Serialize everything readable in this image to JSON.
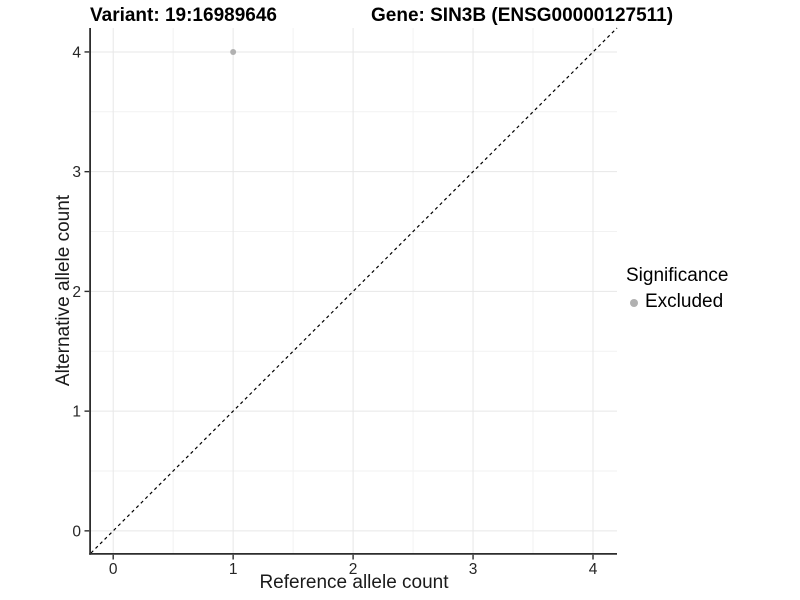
{
  "title": {
    "variant_part": "Variant: 19:16989646",
    "gene_part": "Gene: SIN3B (ENSG00000127511)"
  },
  "x_axis": {
    "label": "Reference allele count",
    "ticks": [
      "0",
      "1",
      "2",
      "3",
      "4"
    ]
  },
  "y_axis": {
    "label": "Alternative allele count",
    "ticks": [
      "0",
      "1",
      "2",
      "3",
      "4"
    ]
  },
  "legend": {
    "title": "Significance",
    "items": [
      {
        "label": "Excluded",
        "color": "#b1b1b1",
        "marker": "circle"
      }
    ]
  },
  "chart_data": {
    "type": "scatter",
    "title": "Variant: 19:16989646    Gene: SIN3B (ENSG00000127511)",
    "xlabel": "Reference allele count",
    "ylabel": "Alternative allele count",
    "xlim": [
      -0.185,
      4.2
    ],
    "ylim": [
      -0.185,
      4.2
    ],
    "x_major_ticks": [
      0,
      1,
      2,
      3,
      4
    ],
    "y_major_ticks": [
      0,
      1,
      2,
      3,
      4
    ],
    "x_minor_gridlines": [
      0.5,
      1.5,
      2.5,
      3.5
    ],
    "y_minor_gridlines": [
      0.5,
      1.5,
      2.5,
      3.5
    ],
    "grid": "major+minor",
    "legend_position": "right",
    "series": [
      {
        "name": "Excluded",
        "color": "#b1b1b1",
        "marker": "circle",
        "points": [
          [
            1,
            4
          ]
        ]
      }
    ],
    "reference_line": {
      "kind": "y=x identity",
      "from": [
        -0.185,
        -0.185
      ],
      "to": [
        4.2,
        4.2
      ],
      "style": "dashed",
      "color": "#000000"
    }
  },
  "colors": {
    "background": "#ffffff",
    "grid_major": "#e7e7e7",
    "grid_minor": "#f2f2f2",
    "axis_line": "#2d2d2d",
    "tick_text": "#262626",
    "title_text": "#000000",
    "point": "#b1b1b1"
  }
}
